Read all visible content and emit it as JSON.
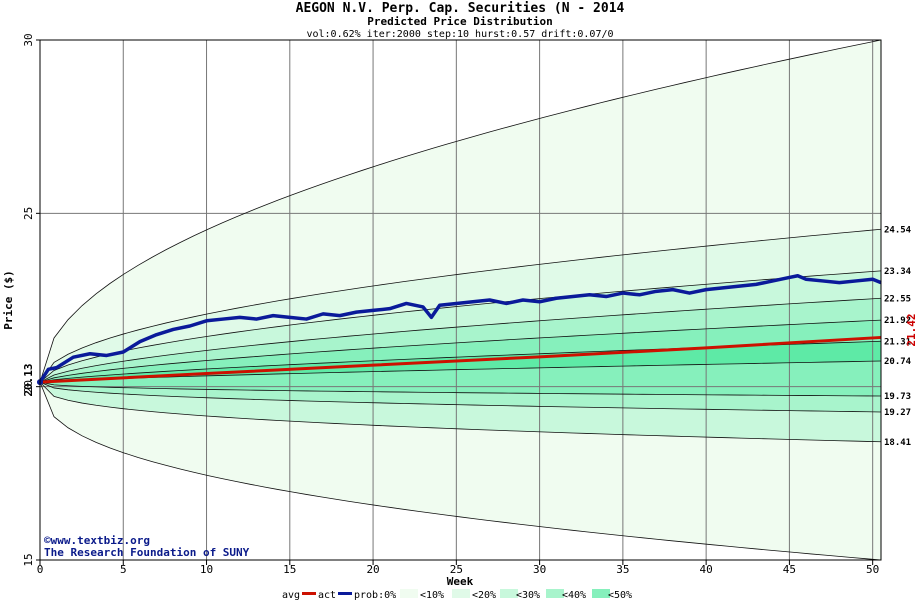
{
  "header": {
    "title": "AEGON N.V. Perp. Cap. Securities (N - 2014",
    "subtitle": "Predicted Price Distribution",
    "params": "vol:0.62% iter:2000 step:10 hurst:0.57 drift:0.07/0"
  },
  "credits": {
    "website": "©www.textbiz.org",
    "org": "The Research Foundation of SUNY"
  },
  "legend": {
    "avg": "avg",
    "act": "act",
    "prob": "prob:0%",
    "b10": "<10%",
    "b20": "<20%",
    "b30": "<30%",
    "b40": "<40%",
    "b50": "<50%"
  },
  "colors": {
    "avg_line": "#cc1100",
    "act_line": "#0a1a9a",
    "band_0": "#f0fcf0",
    "band_10": "#e0fae8",
    "band_20": "#c8f8dc",
    "band_30": "#a8f4cc",
    "band_40": "#86f0bc",
    "band_50": "#5eeaa6",
    "grid": "#777777",
    "value_label": "#cc0000"
  },
  "chart_data": {
    "type": "line",
    "xlabel": "Week",
    "ylabel": "Price ($)",
    "xlim": [
      0,
      50.5
    ],
    "ylim": [
      15,
      30
    ],
    "x_ticks": [
      0,
      5,
      10,
      15,
      20,
      25,
      30,
      35,
      40,
      45,
      50
    ],
    "y_ticks": [
      15,
      20,
      25,
      30
    ],
    "grid": true,
    "start_price": 20.13,
    "start_price_label": "20.13",
    "actual_end_label": "21.42",
    "band_end_labels": [
      "24.54",
      "23.34",
      "22.55",
      "21.92",
      "21.31",
      "20.74",
      "19.73",
      "19.27",
      "18.41"
    ],
    "bands": [
      {
        "name": "upper_outer",
        "end": 30.0,
        "shape": 0.5
      },
      {
        "name": "p_upper_0",
        "end": 24.54,
        "shape": 0.5
      },
      {
        "name": "p_upper_10",
        "end": 23.34,
        "shape": 0.55
      },
      {
        "name": "p_upper_20",
        "end": 22.55,
        "shape": 0.6
      },
      {
        "name": "p_upper_30",
        "end": 21.92,
        "shape": 0.65
      },
      {
        "name": "p_upper_40",
        "end": 21.31,
        "shape": 0.7
      },
      {
        "name": "p_mid",
        "end": 20.74,
        "shape": 0.75
      },
      {
        "name": "p_lower_40",
        "end": 19.73,
        "shape": 0.4
      },
      {
        "name": "p_lower_30",
        "end": 19.27,
        "shape": 0.4
      },
      {
        "name": "p_lower_0",
        "end": 18.41,
        "shape": 0.35
      },
      {
        "name": "lower_outer",
        "end": 15.0,
        "shape": 0.4
      }
    ],
    "series": [
      {
        "name": "avg",
        "x": [
          0,
          10,
          20,
          30,
          40,
          50.5
        ],
        "y": [
          20.13,
          20.38,
          20.62,
          20.86,
          21.12,
          21.42
        ]
      },
      {
        "name": "act",
        "x": [
          0,
          0.5,
          1,
          2,
          3,
          4,
          5,
          6,
          7,
          8,
          9,
          10,
          11,
          12,
          13,
          14,
          15,
          16,
          17,
          18,
          19,
          20,
          21,
          22,
          23,
          23.5,
          24,
          25,
          26,
          27,
          28,
          29,
          30,
          31,
          32,
          33,
          34,
          35,
          36,
          37,
          38,
          39,
          40,
          41,
          42,
          43,
          44,
          45,
          45.5,
          46,
          47,
          48,
          49,
          50,
          50.5
        ],
        "y": [
          20.13,
          20.5,
          20.55,
          20.85,
          20.95,
          20.9,
          21.0,
          21.3,
          21.5,
          21.65,
          21.75,
          21.9,
          21.95,
          22.0,
          21.95,
          22.05,
          22.0,
          21.95,
          22.1,
          22.05,
          22.15,
          22.2,
          22.25,
          22.4,
          22.3,
          22.0,
          22.35,
          22.4,
          22.45,
          22.5,
          22.4,
          22.5,
          22.45,
          22.55,
          22.6,
          22.65,
          22.6,
          22.7,
          22.65,
          22.75,
          22.8,
          22.7,
          22.8,
          22.85,
          22.9,
          22.95,
          23.05,
          23.15,
          23.2,
          23.1,
          23.05,
          23.0,
          23.05,
          23.1,
          23.0
        ]
      }
    ]
  }
}
